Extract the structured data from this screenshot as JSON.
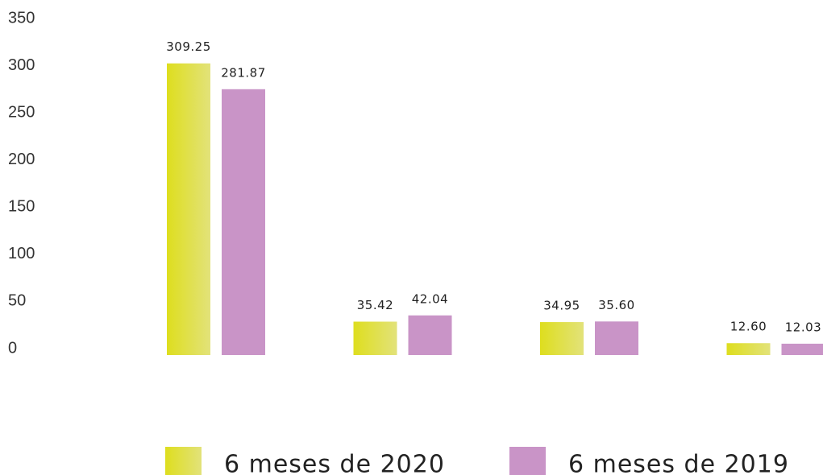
{
  "chart_data": {
    "type": "bar",
    "categories": [
      null,
      null,
      null,
      null
    ],
    "series": [
      {
        "name": "6 meses de 2020",
        "color": "#dede2a",
        "values": [
          309.25,
          35.42,
          34.95,
          12.6
        ],
        "value_labels": [
          "309.25",
          "35.42",
          "34.95",
          "12.60"
        ]
      },
      {
        "name": "6 meses de 2019",
        "color": "#c994c7",
        "values": [
          281.87,
          42.04,
          35.6,
          12.03
        ],
        "value_labels": [
          "281.87",
          "42.04",
          "35.60",
          "12.03"
        ]
      }
    ],
    "ylim": [
      0,
      350
    ],
    "yticks": [
      0,
      50,
      100,
      150,
      200,
      250,
      300,
      350
    ],
    "grid": false
  }
}
